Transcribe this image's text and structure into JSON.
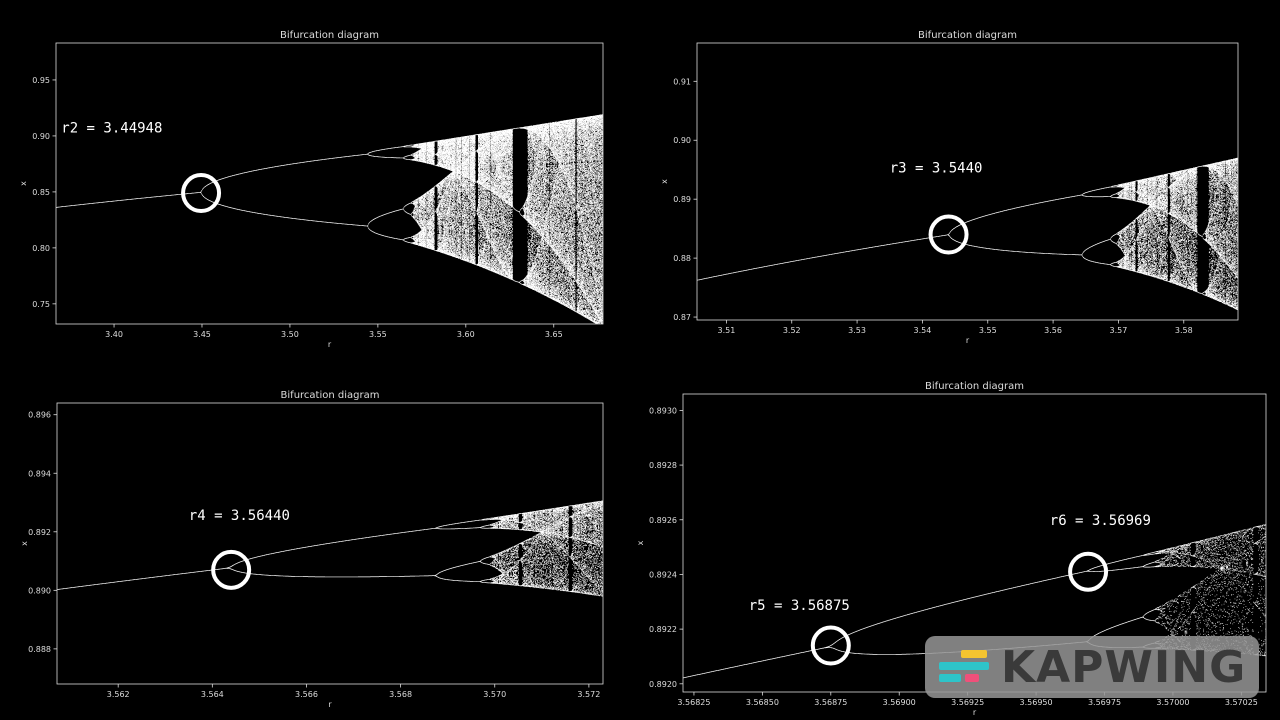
{
  "colors": {
    "background": "#000000",
    "axes": "#dddddd",
    "points": "#ffffff",
    "circle": "#ffffff"
  },
  "watermark": {
    "text": "KAPWING",
    "logo_icon": "kapwing-logo-icon"
  },
  "chart_data": [
    {
      "type": "scatter",
      "title": "Bifurcation diagram",
      "xlabel": "r",
      "ylabel": "x",
      "xlim": [
        3.367,
        3.678
      ],
      "ylim": [
        0.732,
        0.983
      ],
      "xticks": [
        "3.40",
        "3.45",
        "3.50",
        "3.55",
        "3.60",
        "3.65"
      ],
      "xtick_values": [
        3.4,
        3.45,
        3.5,
        3.55,
        3.6,
        3.65
      ],
      "yticks": [
        "0.75",
        "0.80",
        "0.85",
        "0.90",
        "0.95"
      ],
      "ytick_values": [
        0.75,
        0.8,
        0.85,
        0.9,
        0.95
      ],
      "annotation": {
        "text": "r2 =  3.44948",
        "x": 3.37,
        "y": 0.903
      },
      "marker": {
        "r": 3.44948,
        "x": 0.849
      },
      "model": "logistic map x(n+1) = r·x(n)·(1−x(n)), attractor points"
    },
    {
      "type": "scatter",
      "title": "Bifurcation diagram",
      "xlabel": "r",
      "ylabel": "x",
      "xlim": [
        3.5055,
        3.5883
      ],
      "ylim": [
        0.8695,
        0.9165
      ],
      "xticks": [
        "3.51",
        "3.52",
        "3.53",
        "3.54",
        "3.55",
        "3.56",
        "3.57",
        "3.58"
      ],
      "xtick_values": [
        3.51,
        3.52,
        3.53,
        3.54,
        3.55,
        3.56,
        3.57,
        3.58
      ],
      "yticks": [
        "0.87",
        "0.88",
        "0.89",
        "0.90",
        "0.91"
      ],
      "ytick_values": [
        0.87,
        0.88,
        0.89,
        0.9,
        0.91
      ],
      "annotation": {
        "text": "r3 =  3.5440",
        "x": 3.535,
        "y": 0.8945
      },
      "marker": {
        "r": 3.544,
        "x": 0.884
      },
      "model": "logistic map x(n+1) = r·x(n)·(1−x(n)), attractor points"
    },
    {
      "type": "scatter",
      "title": "Bifurcation diagram",
      "xlabel": "r",
      "ylabel": "x",
      "xlim": [
        3.5607,
        3.5723
      ],
      "ylim": [
        0.8868,
        0.8964
      ],
      "xticks": [
        "3.562",
        "3.564",
        "3.566",
        "3.568",
        "3.570",
        "3.572"
      ],
      "xtick_values": [
        3.562,
        3.564,
        3.566,
        3.568,
        3.57,
        3.572
      ],
      "yticks": [
        "0.888",
        "0.890",
        "0.892",
        "0.894",
        "0.896"
      ],
      "ytick_values": [
        0.888,
        0.89,
        0.892,
        0.894,
        0.896
      ],
      "annotation": {
        "text": "r4 = 3.56440",
        "x": 3.5635,
        "y": 0.8924
      },
      "marker": {
        "r": 3.5644,
        "x": 0.8907
      },
      "model": "logistic map x(n+1) = r·x(n)·(1−x(n)), attractor points"
    },
    {
      "type": "scatter",
      "title": "Bifurcation diagram",
      "xlabel": "r",
      "ylabel": "x",
      "xlim": [
        3.56821,
        3.57034
      ],
      "ylim": [
        0.89197,
        0.89306
      ],
      "xticks": [
        "3.56825",
        "3.56850",
        "3.56875",
        "3.56900",
        "3.56925",
        "3.56950",
        "3.56975",
        "3.57000",
        "3.57025"
      ],
      "xtick_values": [
        3.56825,
        3.5685,
        3.56875,
        3.569,
        3.56925,
        3.5695,
        3.56975,
        3.57,
        3.57025
      ],
      "yticks": [
        "0.8920",
        "0.8922",
        "0.8924",
        "0.8926",
        "0.8928",
        "0.8930"
      ],
      "ytick_values": [
        0.892,
        0.8922,
        0.8924,
        0.8926,
        0.8928,
        0.893
      ],
      "annotations": [
        {
          "text": "r5 = 3.56875",
          "x": 3.56845,
          "y": 0.89227
        },
        {
          "text": "r6 = 3.56969",
          "x": 3.56955,
          "y": 0.89258
        }
      ],
      "markers": [
        {
          "r": 3.56875,
          "x": 0.89214
        },
        {
          "r": 3.56969,
          "x": 0.89241
        }
      ],
      "model": "logistic map x(n+1) = r·x(n)·(1−x(n)), attractor points"
    }
  ]
}
